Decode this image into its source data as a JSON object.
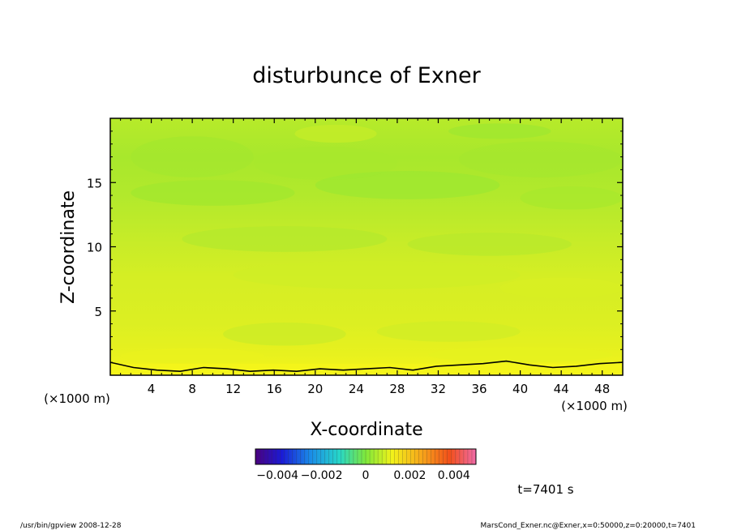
{
  "chart_data": {
    "type": "heatmap",
    "title": "disturbunce of Exner",
    "xlabel": "X-coordinate",
    "ylabel": "Z-coordinate",
    "x_unit": "(×1000 m)",
    "y_unit": "(×1000 m)",
    "xlim": [
      0,
      50
    ],
    "ylim": [
      0,
      20
    ],
    "x_ticks": [
      4,
      8,
      12,
      16,
      20,
      24,
      28,
      32,
      36,
      40,
      44,
      48
    ],
    "y_ticks": [
      5,
      10,
      15
    ],
    "colorbar": {
      "range": [
        -0.005,
        0.005
      ],
      "tick_labels": [
        "−0.004",
        "−0.002",
        "0",
        "0.002",
        "0.004"
      ],
      "tick_values": [
        -0.004,
        -0.002,
        0,
        0.002,
        0.004
      ],
      "colormap": "rainbow"
    },
    "field_description": "disturbance field near 0.001–0.002, highest (yellow) near surface, lower (green) aloft",
    "zero_contour_approx_height_km": [
      1.0,
      0.6,
      0.4,
      0.3,
      0.6,
      0.5,
      0.3,
      0.4,
      0.3,
      0.5,
      0.4,
      0.5,
      0.6,
      0.4,
      0.7,
      0.8,
      0.9,
      1.1,
      0.8,
      0.6,
      0.7,
      0.9,
      1.0
    ],
    "time_label": "t=7401 s"
  },
  "footer": {
    "left": "/usr/bin/gpview   2008-12-28",
    "right": "MarsCond_Exner.nc@Exner,x=0:50000,z=0:20000,t=7401"
  },
  "colors": {
    "yellow": "#f2f21a",
    "yellow_green": "#d4ef2a",
    "green": "#9ee830"
  }
}
